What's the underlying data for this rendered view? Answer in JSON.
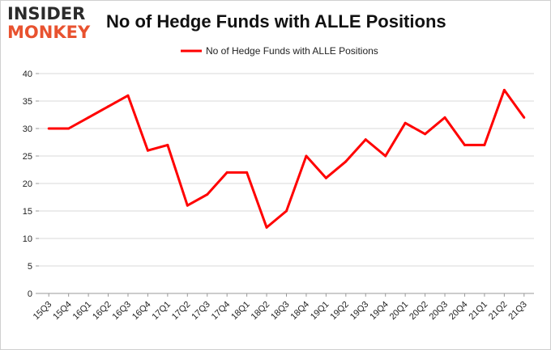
{
  "brand": {
    "line1": "INSIDER",
    "line2": "MONKEY"
  },
  "chart_data": {
    "type": "line",
    "title": "No of Hedge Funds with ALLE Positions",
    "xlabel": "",
    "ylabel": "",
    "categories": [
      "15Q3",
      "15Q4",
      "16Q1",
      "16Q2",
      "16Q3",
      "16Q4",
      "17Q1",
      "17Q2",
      "17Q3",
      "17Q4",
      "18Q1",
      "18Q2",
      "18Q3",
      "18Q4",
      "19Q1",
      "19Q2",
      "19Q3",
      "19Q4",
      "20Q1",
      "20Q2",
      "20Q3",
      "20Q4",
      "21Q1",
      "21Q2",
      "21Q3"
    ],
    "series": [
      {
        "name": "No of Hedge Funds with ALLE Positions",
        "color": "#ff0000",
        "values": [
          30,
          30,
          32,
          34,
          36,
          26,
          27,
          16,
          18,
          22,
          22,
          12,
          15,
          25,
          21,
          24,
          28,
          25,
          31,
          29,
          32,
          27,
          27,
          37,
          32
        ]
      }
    ],
    "ylim": [
      0,
      40
    ],
    "yticks": [
      0,
      5,
      10,
      15,
      20,
      25,
      30,
      35,
      40
    ],
    "grid": true,
    "legend": "top-center"
  }
}
